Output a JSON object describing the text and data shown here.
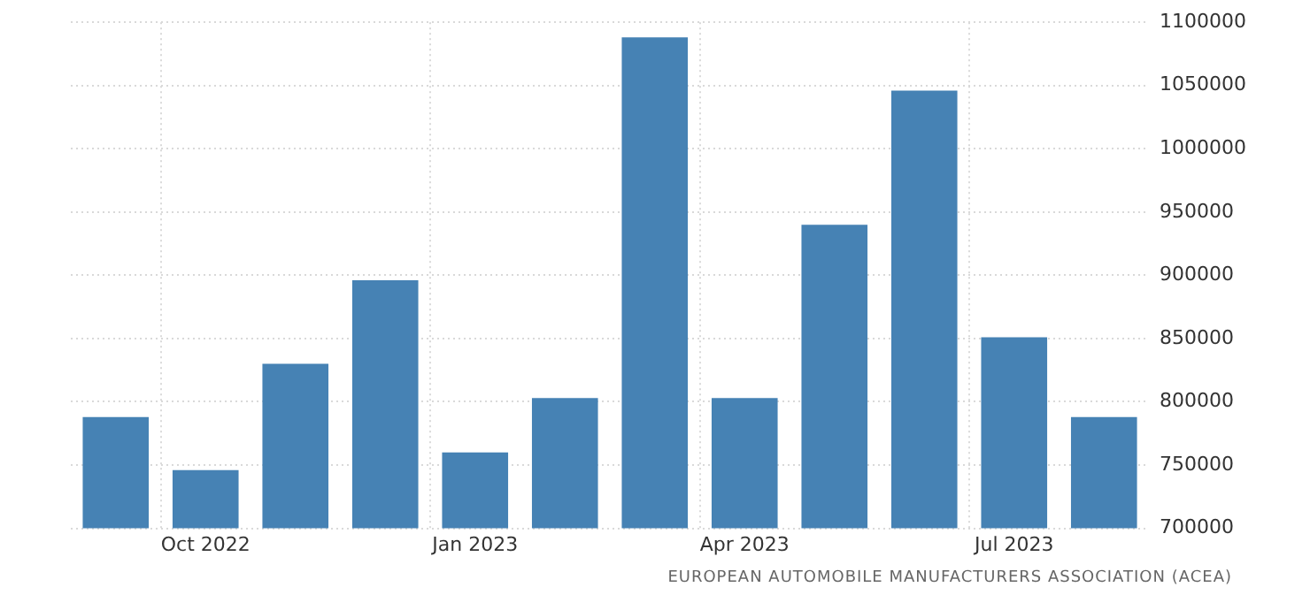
{
  "chart_data": {
    "type": "bar",
    "categories": [
      null,
      "Oct 2022",
      null,
      null,
      "Jan 2023",
      null,
      null,
      "Apr 2023",
      null,
      null,
      "Jul 2023",
      null
    ],
    "values": [
      788000,
      746000,
      830000,
      896000,
      760000,
      803000,
      1088000,
      803000,
      940000,
      1046000,
      851000,
      788000
    ],
    "color": "#4682b4",
    "ylim": [
      700000,
      1100000
    ],
    "yticks": [
      700000,
      750000,
      800000,
      850000,
      900000,
      950000,
      1000000,
      1050000,
      1100000
    ],
    "grid": true,
    "legend": false,
    "annotations": [
      "EUROPEAN AUTOMOBILE MANUFACTURERS ASSOCIATION (ACEA)"
    ]
  }
}
